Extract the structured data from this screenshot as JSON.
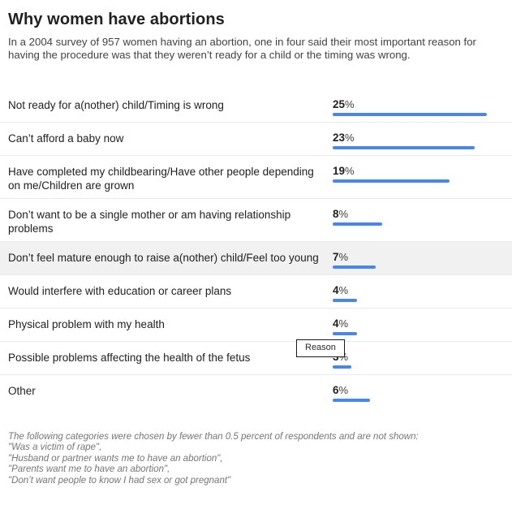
{
  "header": {
    "title": "Why women have abortions",
    "subtitle": "In a 2004 survey of 957 women having an abortion, one in four said their most important reason for having the procedure was that they weren’t ready for a child or the timing was wrong."
  },
  "chart_data": {
    "type": "bar",
    "orientation": "horizontal",
    "title": "Why women have abortions",
    "unit": "%",
    "xlim": [
      0,
      25
    ],
    "grid": false,
    "legend": "none",
    "bar_color": "#4a86e8",
    "highlight_row_color": "#f1f1f1",
    "highlighted_index": 4,
    "categories": [
      "Not ready for a(nother) child/Timing is wrong",
      "Can’t afford a baby now",
      "Have completed my childbearing/Have other people depending on me/Children are grown",
      "Don’t want to be a single mother or am having relationship problems",
      "Don’t feel mature enough to raise a(nother) child/Feel too young",
      "Would interfere with education or career plans",
      "Physical problem with my health",
      "Possible problems affecting the health of the fetus",
      "Other"
    ],
    "values": [
      25,
      23,
      19,
      8,
      7,
      4,
      4,
      3,
      6
    ],
    "value_labels": [
      "25%",
      "23%",
      "19%",
      "8%",
      "7%",
      "4%",
      "4%",
      "3%",
      "6%"
    ],
    "tooltip_row_index": 7
  },
  "tooltip": {
    "text": "Reason"
  },
  "footnote": {
    "lines": [
      "The following categories were chosen by fewer than 0.5 percent of respondents and are not shown:",
      "\"Was a victim of rape\",",
      "\"Husband or partner wants me to have an abortion\",",
      "\"Parents want me to have an abortion\",",
      "\"Don’t want people to know I had sex or got pregnant\""
    ]
  }
}
